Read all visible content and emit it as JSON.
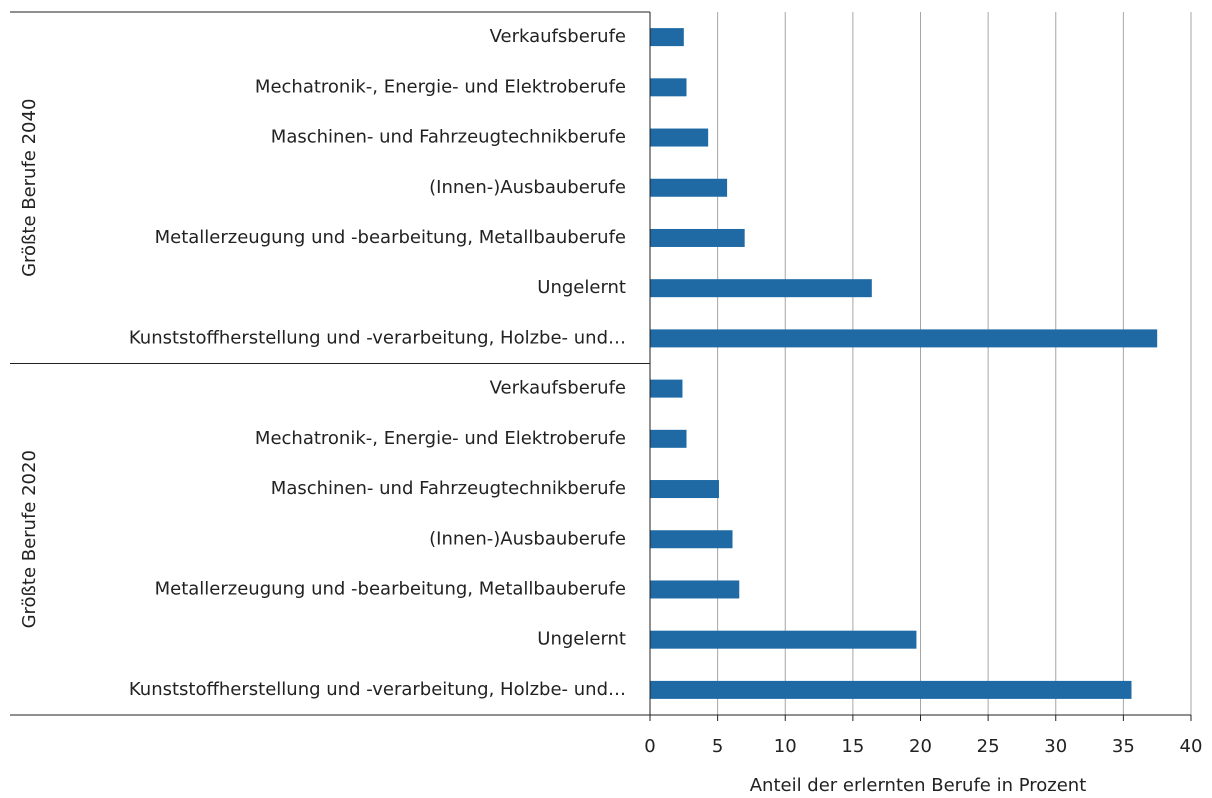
{
  "chart_data": {
    "type": "bar",
    "orientation": "horizontal",
    "color": "#1f6aa5",
    "grid": true,
    "xlabel": "Anteil der erlernten Berufe in Prozent",
    "xlim": [
      0,
      40
    ],
    "xticks": [
      0,
      5,
      10,
      15,
      20,
      25,
      30,
      35,
      40
    ],
    "groups": [
      {
        "label": "Größte Berufe 2040",
        "categories": [
          "Verkaufsberufe",
          "Mechatronik-, Energie- und Elektroberufe",
          "Maschinen- und Fahrzeugtechnikberufe",
          "(Innen-)Ausbauberufe",
          "Metallerzeugung und -bearbeitung, Metallbauberufe",
          "Ungelernt",
          "Kunststoffherstellung und -verarbeitung, Holzbe- und…"
        ],
        "values": [
          2.5,
          2.7,
          4.3,
          5.7,
          7.0,
          16.4,
          37.5
        ]
      },
      {
        "label": "Größte Berufe 2020",
        "categories": [
          "Verkaufsberufe",
          "Mechatronik-, Energie- und Elektroberufe",
          "Maschinen- und Fahrzeugtechnikberufe",
          "(Innen-)Ausbauberufe",
          "Metallerzeugung und -bearbeitung, Metallbauberufe",
          "Ungelernt",
          "Kunststoffherstellung und -verarbeitung, Holzbe- und…"
        ],
        "values": [
          2.4,
          2.7,
          5.1,
          6.1,
          6.6,
          19.7,
          35.6
        ]
      }
    ]
  }
}
